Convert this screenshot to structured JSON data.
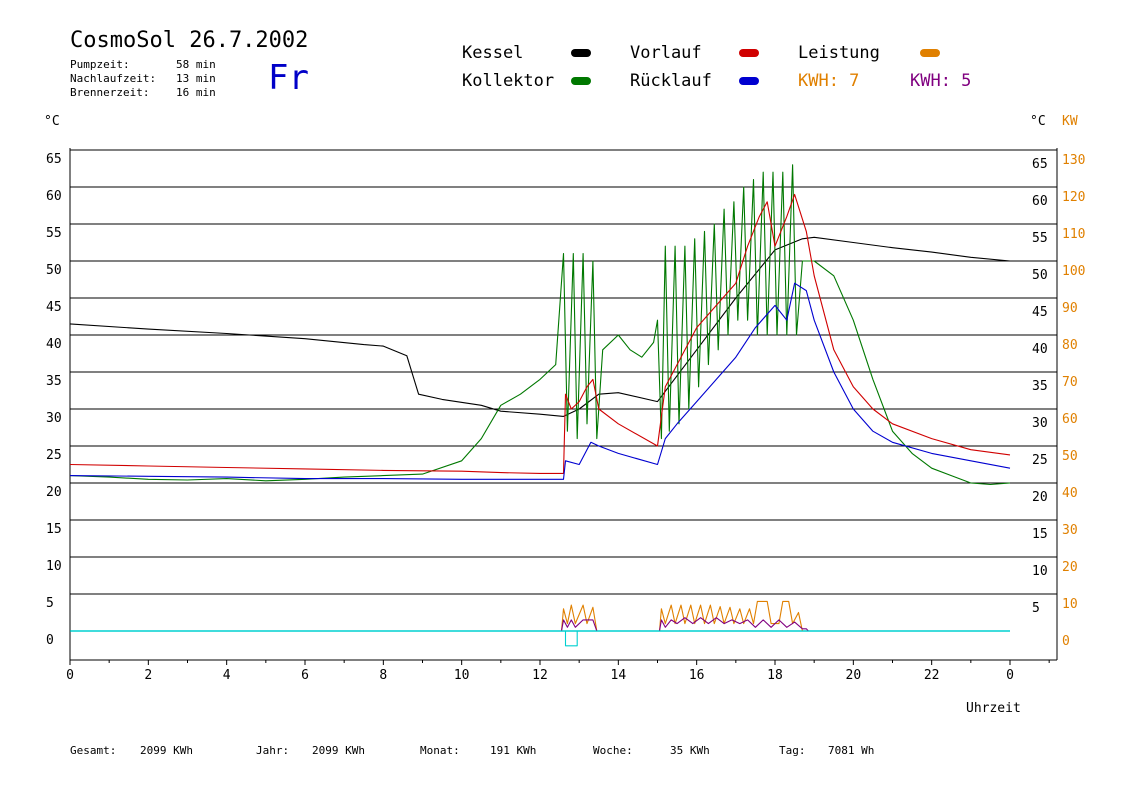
{
  "header": {
    "title": "CosmoSol 26.7.2002",
    "day": "Fr",
    "stats": [
      {
        "label": "Pumpzeit:",
        "value": "58 min"
      },
      {
        "label": "Nachlaufzeit:",
        "value": "13 min"
      },
      {
        "label": "Brennerzeit:",
        "value": "16 min"
      }
    ]
  },
  "legend": {
    "kessel": "Kessel",
    "kollektor": "Kollektor",
    "vorlauf": "Vorlauf",
    "ruecklauf": "Rücklauf",
    "leistung": "Leistung",
    "kwh1": "KWH: 7",
    "kwh2": "KWH: 5"
  },
  "axes": {
    "left_unit": "°C",
    "right_unit_c": "°C",
    "right_unit_kw": "KW",
    "xlabel": "Uhrzeit"
  },
  "footer": [
    {
      "label": "Gesamt:",
      "value": "2099 KWh"
    },
    {
      "label": "Jahr:",
      "value": "2099 KWh"
    },
    {
      "label": "Monat:",
      "value": "191 KWh"
    },
    {
      "label": "Woche:",
      "value": "35 KWh"
    },
    {
      "label": "Tag:",
      "value": "7081 Wh"
    }
  ],
  "colors": {
    "kessel": "#000000",
    "kollektor": "#007800",
    "vorlauf": "#d00000",
    "ruecklauf": "#0000d0",
    "leistung": "#e08000",
    "kwh2": "#800080",
    "baseline": "#00d0d0"
  },
  "chart_data": {
    "type": "line",
    "xlabel": "Uhrzeit",
    "ylabel": "°C",
    "ylim": [
      -2,
      67
    ],
    "xlim": [
      0,
      24
    ],
    "y_ticks": [
      0,
      5,
      10,
      15,
      20,
      25,
      30,
      35,
      40,
      45,
      50,
      55,
      60,
      65
    ],
    "right_c_ticks": [
      5,
      10,
      15,
      20,
      25,
      30,
      35,
      40,
      45,
      50,
      55,
      60,
      65
    ],
    "right_kw_ticks": [
      0,
      10,
      20,
      30,
      40,
      50,
      60,
      70,
      80,
      90,
      100,
      110,
      120,
      130
    ],
    "x_ticks": [
      "0",
      "2",
      "4",
      "6",
      "8",
      "10",
      "12",
      "14",
      "16",
      "18",
      "20",
      "22",
      "0"
    ],
    "grid": true,
    "series": [
      {
        "name": "Kessel",
        "color": "#000000",
        "points": [
          [
            0,
            41.5
          ],
          [
            2,
            40.8
          ],
          [
            4,
            40.2
          ],
          [
            6,
            39.5
          ],
          [
            7.5,
            38.7
          ],
          [
            8,
            38.5
          ],
          [
            8.6,
            37.2
          ],
          [
            8.9,
            32
          ],
          [
            9.5,
            31.3
          ],
          [
            10.5,
            30.5
          ],
          [
            11,
            29.7
          ],
          [
            12,
            29.3
          ],
          [
            12.6,
            29
          ],
          [
            13,
            30
          ],
          [
            13.5,
            32
          ],
          [
            14,
            32.2
          ],
          [
            15,
            31
          ],
          [
            16,
            38
          ],
          [
            17,
            45
          ],
          [
            18,
            51.5
          ],
          [
            18.7,
            53
          ],
          [
            19,
            53.2
          ],
          [
            20,
            52.5
          ],
          [
            21,
            51.8
          ],
          [
            22,
            51.2
          ],
          [
            23,
            50.5
          ],
          [
            24,
            50
          ]
        ]
      },
      {
        "name": "Kollektor",
        "color": "#007800",
        "points": [
          [
            0,
            21
          ],
          [
            1,
            20.8
          ],
          [
            2,
            20.5
          ],
          [
            3,
            20.4
          ],
          [
            4,
            20.6
          ],
          [
            5,
            20.3
          ],
          [
            6,
            20.5
          ],
          [
            7,
            20.8
          ],
          [
            8,
            21
          ],
          [
            9,
            21.2
          ],
          [
            10,
            23
          ],
          [
            10.5,
            26
          ],
          [
            11,
            30.5
          ],
          [
            11.5,
            32
          ],
          [
            12,
            34
          ],
          [
            12.4,
            36
          ],
          [
            12.6,
            51
          ],
          [
            12.7,
            27
          ],
          [
            12.85,
            51
          ],
          [
            12.95,
            26
          ],
          [
            13.1,
            51
          ],
          [
            13.2,
            28
          ],
          [
            13.35,
            50
          ],
          [
            13.45,
            26
          ],
          [
            13.6,
            38
          ],
          [
            14,
            40
          ],
          [
            14.3,
            38
          ],
          [
            14.6,
            37
          ],
          [
            14.9,
            39
          ],
          [
            15,
            42
          ],
          [
            15.1,
            26
          ],
          [
            15.2,
            52
          ],
          [
            15.3,
            27
          ],
          [
            15.45,
            52
          ],
          [
            15.55,
            28
          ],
          [
            15.7,
            52
          ],
          [
            15.8,
            30
          ],
          [
            15.95,
            53
          ],
          [
            16.05,
            33
          ],
          [
            16.2,
            54
          ],
          [
            16.3,
            36
          ],
          [
            16.45,
            55
          ],
          [
            16.55,
            38
          ],
          [
            16.7,
            57
          ],
          [
            16.8,
            40
          ],
          [
            16.95,
            58
          ],
          [
            17.05,
            42
          ],
          [
            17.2,
            60
          ],
          [
            17.3,
            42
          ],
          [
            17.45,
            61
          ],
          [
            17.55,
            40
          ],
          [
            17.7,
            62
          ],
          [
            17.8,
            40
          ],
          [
            17.95,
            62
          ],
          [
            18.05,
            40
          ],
          [
            18.2,
            62
          ],
          [
            18.3,
            40
          ],
          [
            18.45,
            63
          ],
          [
            18.55,
            40
          ],
          [
            18.7,
            50
          ],
          [
            19,
            50
          ],
          [
            19.5,
            48
          ],
          [
            20,
            42
          ],
          [
            20.5,
            34
          ],
          [
            21,
            27
          ],
          [
            21.5,
            24
          ],
          [
            22,
            22
          ],
          [
            22.5,
            21
          ],
          [
            23,
            20
          ],
          [
            23.5,
            19.8
          ],
          [
            24,
            20
          ]
        ]
      },
      {
        "name": "Vorlauf",
        "color": "#d00000",
        "points": [
          [
            0,
            22.5
          ],
          [
            2,
            22.3
          ],
          [
            4,
            22.1
          ],
          [
            6,
            21.9
          ],
          [
            8,
            21.7
          ],
          [
            10,
            21.6
          ],
          [
            11,
            21.4
          ],
          [
            12,
            21.3
          ],
          [
            12.6,
            21.3
          ],
          [
            12.65,
            32
          ],
          [
            12.8,
            30
          ],
          [
            13,
            31
          ],
          [
            13.2,
            33
          ],
          [
            13.35,
            34
          ],
          [
            13.5,
            30
          ],
          [
            14,
            28
          ],
          [
            15,
            25
          ],
          [
            15.2,
            33
          ],
          [
            15.5,
            36
          ],
          [
            16,
            41
          ],
          [
            16.5,
            44
          ],
          [
            17,
            47
          ],
          [
            17.3,
            52
          ],
          [
            17.6,
            56
          ],
          [
            17.8,
            58
          ],
          [
            18,
            52
          ],
          [
            18.3,
            56
          ],
          [
            18.5,
            59
          ],
          [
            18.8,
            54
          ],
          [
            19,
            48
          ],
          [
            19.5,
            38
          ],
          [
            20,
            33
          ],
          [
            20.5,
            30
          ],
          [
            21,
            28
          ],
          [
            22,
            26
          ],
          [
            23,
            24.5
          ],
          [
            24,
            23.8
          ]
        ]
      },
      {
        "name": "Rücklauf",
        "color": "#0000d0",
        "points": [
          [
            0,
            21
          ],
          [
            2,
            20.9
          ],
          [
            4,
            20.8
          ],
          [
            6,
            20.6
          ],
          [
            8,
            20.6
          ],
          [
            10,
            20.5
          ],
          [
            12,
            20.5
          ],
          [
            12.6,
            20.5
          ],
          [
            12.65,
            23
          ],
          [
            13,
            22.5
          ],
          [
            13.3,
            25.5
          ],
          [
            13.5,
            25
          ],
          [
            14,
            24
          ],
          [
            15,
            22.5
          ],
          [
            15.2,
            26
          ],
          [
            15.5,
            28
          ],
          [
            16,
            31
          ],
          [
            16.5,
            34
          ],
          [
            17,
            37
          ],
          [
            17.5,
            41
          ],
          [
            18,
            44
          ],
          [
            18.3,
            42
          ],
          [
            18.5,
            47
          ],
          [
            18.8,
            46
          ],
          [
            19,
            42
          ],
          [
            19.5,
            35
          ],
          [
            20,
            30
          ],
          [
            20.5,
            27
          ],
          [
            21,
            25.5
          ],
          [
            22,
            24
          ],
          [
            23,
            23
          ],
          [
            24,
            22
          ]
        ]
      },
      {
        "name": "Leistung",
        "color": "#e08000",
        "points": [
          [
            0,
            0
          ],
          [
            12.55,
            0
          ],
          [
            12.6,
            3
          ],
          [
            12.7,
            1
          ],
          [
            12.8,
            3.5
          ],
          [
            12.9,
            1
          ],
          [
            13.1,
            3.5
          ],
          [
            13.2,
            1
          ],
          [
            13.35,
            3.2
          ],
          [
            13.45,
            0
          ],
          [
            15.05,
            0
          ],
          [
            15.1,
            3
          ],
          [
            15.2,
            1
          ],
          [
            15.35,
            3.5
          ],
          [
            15.45,
            1
          ],
          [
            15.6,
            3.5
          ],
          [
            15.7,
            1
          ],
          [
            15.85,
            3.5
          ],
          [
            15.95,
            1
          ],
          [
            16.1,
            3.5
          ],
          [
            16.2,
            1
          ],
          [
            16.35,
            3.5
          ],
          [
            16.45,
            1
          ],
          [
            16.6,
            3.3
          ],
          [
            16.7,
            1
          ],
          [
            16.85,
            3.2
          ],
          [
            16.95,
            1
          ],
          [
            17.1,
            3
          ],
          [
            17.2,
            1
          ],
          [
            17.35,
            3
          ],
          [
            17.45,
            1
          ],
          [
            17.55,
            4
          ],
          [
            17.8,
            4
          ],
          [
            17.9,
            1
          ],
          [
            18.1,
            1
          ],
          [
            18.2,
            4
          ],
          [
            18.35,
            4
          ],
          [
            18.45,
            1
          ],
          [
            18.6,
            2.5
          ],
          [
            18.7,
            0
          ],
          [
            24,
            0
          ]
        ]
      },
      {
        "name": "KWH: 5",
        "color": "#800080",
        "points": [
          [
            0,
            0
          ],
          [
            12.55,
            0
          ],
          [
            12.6,
            1.5
          ],
          [
            12.7,
            0.5
          ],
          [
            12.8,
            1.5
          ],
          [
            12.9,
            0.5
          ],
          [
            13.1,
            1.5
          ],
          [
            13.35,
            1.5
          ],
          [
            13.45,
            0
          ],
          [
            15.05,
            0
          ],
          [
            15.1,
            1.5
          ],
          [
            15.2,
            0.5
          ],
          [
            15.35,
            1.5
          ],
          [
            15.5,
            1
          ],
          [
            15.7,
            1.8
          ],
          [
            15.9,
            1
          ],
          [
            16.1,
            1.8
          ],
          [
            16.3,
            1
          ],
          [
            16.5,
            1.8
          ],
          [
            16.7,
            1
          ],
          [
            16.9,
            1.5
          ],
          [
            17.1,
            1
          ],
          [
            17.3,
            1.5
          ],
          [
            17.5,
            0.5
          ],
          [
            17.7,
            1.5
          ],
          [
            17.9,
            0.5
          ],
          [
            18.1,
            1.5
          ],
          [
            18.3,
            0.5
          ],
          [
            18.5,
            1.2
          ],
          [
            18.7,
            0.3
          ],
          [
            18.8,
            0.3
          ],
          [
            18.85,
            0
          ],
          [
            24,
            0
          ]
        ]
      },
      {
        "name": "Baseline",
        "color": "#00d0d0",
        "points": [
          [
            0,
            0
          ],
          [
            12.65,
            0
          ],
          [
            12.65,
            -2
          ],
          [
            12.95,
            -2
          ],
          [
            12.95,
            0
          ],
          [
            24,
            0
          ]
        ]
      }
    ]
  }
}
